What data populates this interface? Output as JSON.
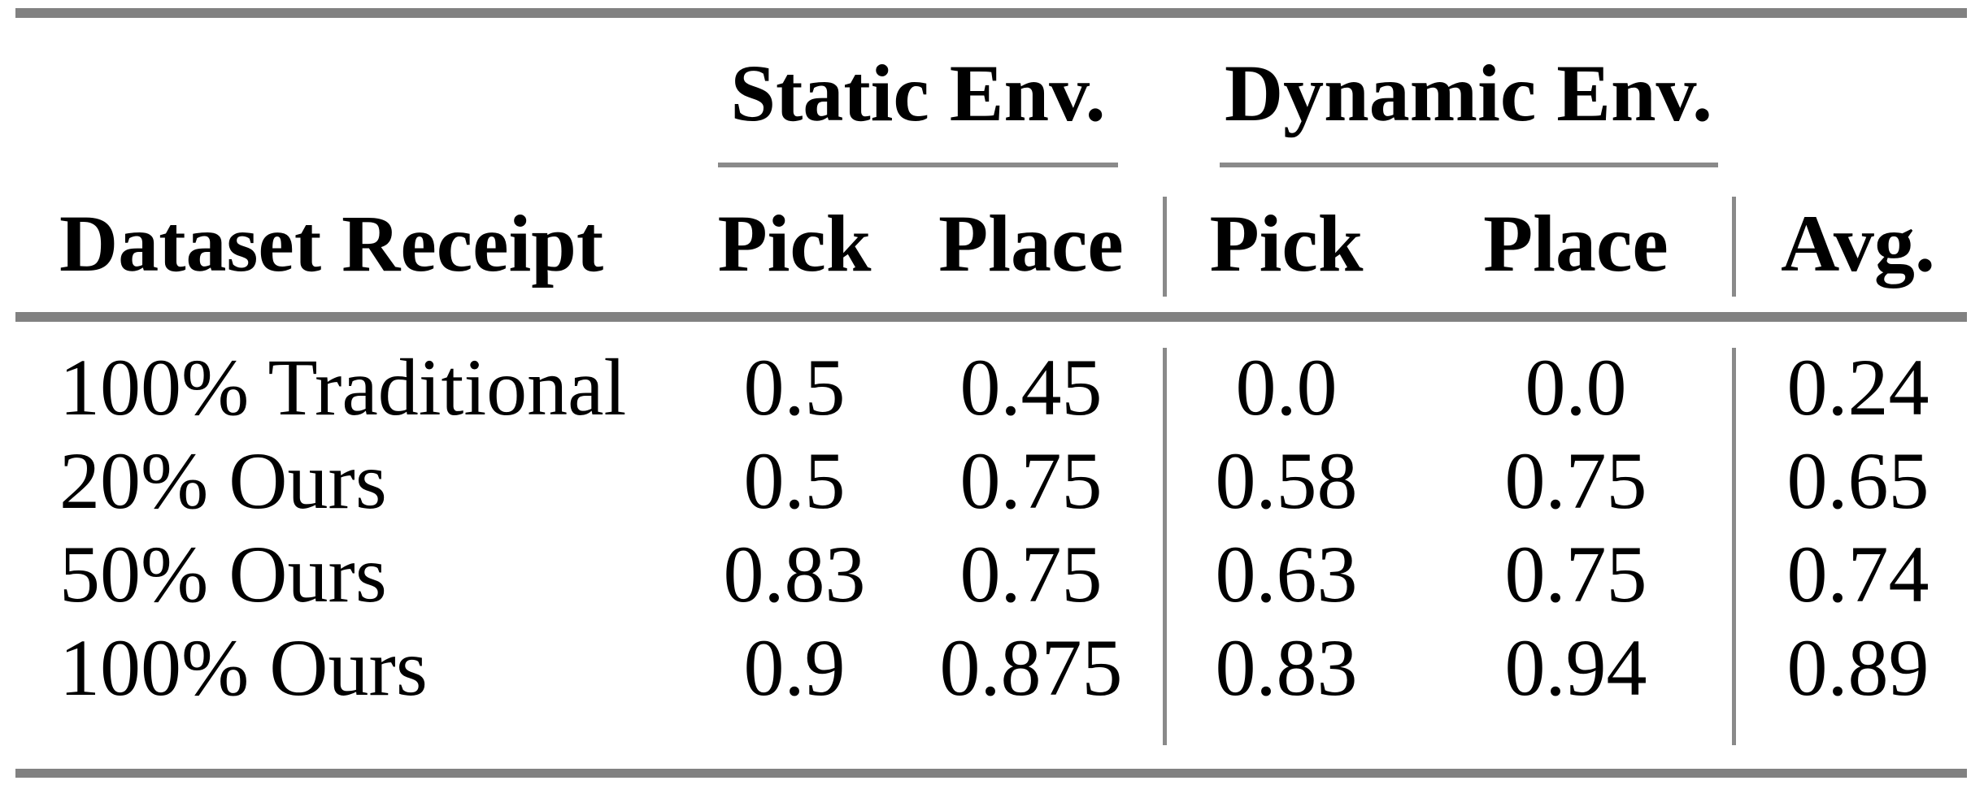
{
  "table": {
    "column_groups": [
      "Static Env.",
      "Dynamic Env."
    ],
    "headers": {
      "row_label": "Dataset Receipt",
      "static_pick": "Pick",
      "static_place": "Place",
      "dynamic_pick": "Pick",
      "dynamic_place": "Place",
      "avg": "Avg."
    },
    "rows": [
      {
        "label": "100% Traditional",
        "values": [
          "0.5",
          "0.45",
          "0.0",
          "0.0",
          "0.24"
        ]
      },
      {
        "label": "20% Ours",
        "values": [
          "0.5",
          "0.75",
          "0.58",
          "0.75",
          "0.65"
        ]
      },
      {
        "label": "50% Ours",
        "values": [
          "0.83",
          "0.75",
          "0.63",
          "0.75",
          "0.74"
        ]
      },
      {
        "label": "100% Ours",
        "values": [
          "0.9",
          "0.875",
          "0.83",
          "0.94",
          "0.89"
        ]
      }
    ],
    "colors": {
      "rule_gray": "#818181",
      "text": "#000000",
      "background": "#ffffff"
    }
  },
  "chart_data": {
    "type": "table",
    "columns": [
      "Dataset Receipt",
      "Static Env. Pick",
      "Static Env. Place",
      "Dynamic Env. Pick",
      "Dynamic Env. Place",
      "Avg."
    ],
    "column_groups": [
      {
        "label": "Static Env.",
        "columns": [
          "Pick",
          "Place"
        ]
      },
      {
        "label": "Dynamic Env.",
        "columns": [
          "Pick",
          "Place"
        ]
      }
    ],
    "rows": [
      [
        "100% Traditional",
        0.5,
        0.45,
        0.0,
        0.0,
        0.24
      ],
      [
        "20% Ours",
        0.5,
        0.75,
        0.58,
        0.75,
        0.65
      ],
      [
        "50% Ours",
        0.83,
        0.75,
        0.63,
        0.75,
        0.74
      ],
      [
        "100% Ours",
        0.9,
        0.875,
        0.83,
        0.94,
        0.89
      ]
    ]
  }
}
